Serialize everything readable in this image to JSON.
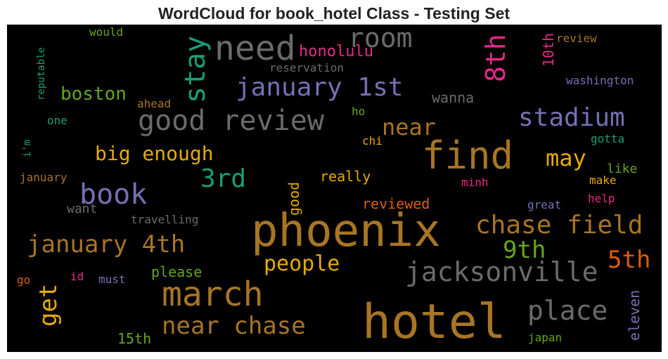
{
  "chart_data": {
    "type": "wordcloud",
    "title": "WordCloud for book_hotel Class - Testing Set",
    "background": "#000000",
    "words": [
      {
        "text": "phoenix",
        "color": "#a87524",
        "orientation": "horizontal"
      },
      {
        "text": "hotel",
        "color": "#a87524",
        "orientation": "horizontal"
      },
      {
        "text": "find",
        "color": "#a87524",
        "orientation": "horizontal"
      },
      {
        "text": "need",
        "color": "#6b6b6b",
        "orientation": "horizontal"
      },
      {
        "text": "room",
        "color": "#6b6b6b",
        "orientation": "horizontal"
      },
      {
        "text": "good review",
        "color": "#6b6b6b",
        "orientation": "horizontal"
      },
      {
        "text": "jacksonville",
        "color": "#6b6b6b",
        "orientation": "horizontal"
      },
      {
        "text": "march",
        "color": "#a87524",
        "orientation": "horizontal"
      },
      {
        "text": "place",
        "color": "#6b6b6b",
        "orientation": "horizontal"
      },
      {
        "text": "stadium",
        "color": "#7570b3",
        "orientation": "horizontal"
      },
      {
        "text": "chase field",
        "color": "#a87524",
        "orientation": "horizontal"
      },
      {
        "text": "january 1st",
        "color": "#7570b3",
        "orientation": "horizontal"
      },
      {
        "text": "book",
        "color": "#7570b3",
        "orientation": "horizontal"
      },
      {
        "text": "january 4th",
        "color": "#a87524",
        "orientation": "horizontal"
      },
      {
        "text": "near chase",
        "color": "#a87524",
        "orientation": "horizontal"
      },
      {
        "text": "stay",
        "color": "#1b9e77",
        "orientation": "vertical"
      },
      {
        "text": "8th",
        "color": "#e7298a",
        "orientation": "vertical"
      },
      {
        "text": "near",
        "color": "#a87524",
        "orientation": "horizontal"
      },
      {
        "text": "3rd",
        "color": "#1b9e77",
        "orientation": "horizontal"
      },
      {
        "text": "may",
        "color": "#e6ab02",
        "orientation": "horizontal"
      },
      {
        "text": "5th",
        "color": "#d95f02",
        "orientation": "horizontal"
      },
      {
        "text": "9th",
        "color": "#66a61e",
        "orientation": "horizontal"
      },
      {
        "text": "people",
        "color": "#e6ab02",
        "orientation": "horizontal"
      },
      {
        "text": "get",
        "color": "#e6ab02",
        "orientation": "vertical"
      },
      {
        "text": "big enough",
        "color": "#e6ab02",
        "orientation": "horizontal"
      },
      {
        "text": "boston",
        "color": "#66a61e",
        "orientation": "horizontal"
      },
      {
        "text": "honolulu",
        "color": "#e7298a",
        "orientation": "horizontal"
      },
      {
        "text": "reviewed",
        "color": "#d95f02",
        "orientation": "horizontal"
      },
      {
        "text": "really",
        "color": "#e6ab02",
        "orientation": "horizontal"
      },
      {
        "text": "please",
        "color": "#66a61e",
        "orientation": "horizontal"
      },
      {
        "text": "15th",
        "color": "#66a61e",
        "orientation": "horizontal"
      },
      {
        "text": "wanna",
        "color": "#6b6b6b",
        "orientation": "horizontal"
      },
      {
        "text": "want",
        "color": "#6b6b6b",
        "orientation": "horizontal"
      },
      {
        "text": "10th",
        "color": "#e7298a",
        "orientation": "vertical"
      },
      {
        "text": "good",
        "color": "#e6ab02",
        "orientation": "vertical"
      },
      {
        "text": "eleven",
        "color": "#7570b3",
        "orientation": "vertical"
      },
      {
        "text": "reservation",
        "color": "#6b6b6b",
        "orientation": "horizontal"
      },
      {
        "text": "washington",
        "color": "#7570b3",
        "orientation": "horizontal"
      },
      {
        "text": "review",
        "color": "#a87524",
        "orientation": "horizontal"
      },
      {
        "text": "travelling",
        "color": "#6b6b6b",
        "orientation": "horizontal"
      },
      {
        "text": "like",
        "color": "#66a61e",
        "orientation": "horizontal"
      },
      {
        "text": "gotta",
        "color": "#1b9e77",
        "orientation": "horizontal"
      },
      {
        "text": "make",
        "color": "#e6ab02",
        "orientation": "horizontal"
      },
      {
        "text": "help",
        "color": "#e7298a",
        "orientation": "horizontal"
      },
      {
        "text": "great",
        "color": "#7570b3",
        "orientation": "horizontal"
      },
      {
        "text": "minh",
        "color": "#e7298a",
        "orientation": "horizontal"
      },
      {
        "text": "japan",
        "color": "#66a61e",
        "orientation": "horizontal"
      },
      {
        "text": "reputable",
        "color": "#1b9e77",
        "orientation": "vertical"
      },
      {
        "text": "would",
        "color": "#66a61e",
        "orientation": "horizontal"
      },
      {
        "text": "ahead",
        "color": "#a87524",
        "orientation": "horizontal"
      },
      {
        "text": "one",
        "color": "#1b9e77",
        "orientation": "horizontal"
      },
      {
        "text": "i'm",
        "color": "#1b9e77",
        "orientation": "vertical"
      },
      {
        "text": "january",
        "color": "#a87524",
        "orientation": "horizontal"
      },
      {
        "text": "ho",
        "color": "#66a61e",
        "orientation": "horizontal"
      },
      {
        "text": "chi",
        "color": "#e6ab02",
        "orientation": "horizontal"
      },
      {
        "text": "go",
        "color": "#d95f02",
        "orientation": "horizontal"
      },
      {
        "text": "id",
        "color": "#e7298a",
        "orientation": "horizontal"
      },
      {
        "text": "must",
        "color": "#7570b3",
        "orientation": "horizontal"
      }
    ]
  }
}
